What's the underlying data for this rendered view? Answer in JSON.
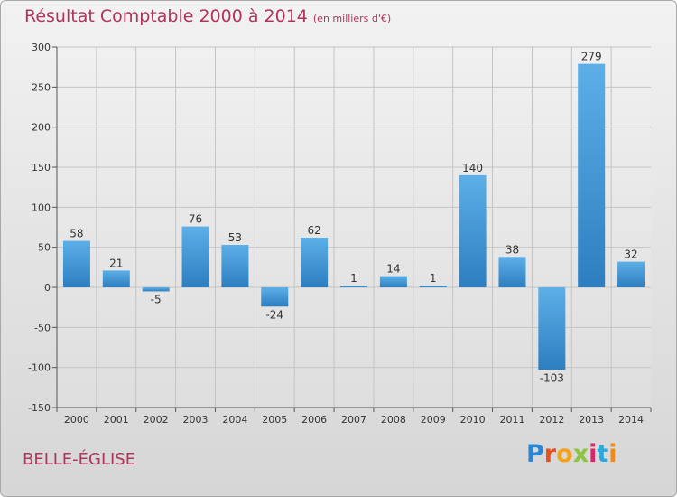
{
  "header": {
    "title": "Résultat Comptable 2000 à 2014",
    "unit": "(en milliers d'€)"
  },
  "footer": {
    "location": "BELLE-ÉGLISE",
    "brand_letters": [
      "P",
      "r",
      "o",
      "x",
      "i",
      "t",
      "i"
    ],
    "brand_colors": [
      "#2a86d1",
      "#e8521f",
      "#f2a31b",
      "#8cc43f",
      "#d6286b",
      "#2ea8d8",
      "#f08a1d"
    ]
  },
  "chart_data": {
    "type": "bar",
    "title": "Résultat Comptable 2000 à 2014",
    "subtitle": "(en milliers d'€)",
    "categories": [
      "2000",
      "2001",
      "2002",
      "2003",
      "2004",
      "2005",
      "2006",
      "2007",
      "2008",
      "2009",
      "2010",
      "2011",
      "2012",
      "2013",
      "2014"
    ],
    "values": [
      58,
      21,
      -5,
      76,
      53,
      -24,
      62,
      1,
      14,
      1,
      140,
      38,
      -103,
      279,
      32
    ],
    "ylim": [
      -150,
      300
    ],
    "yticks": [
      -150,
      -100,
      -50,
      0,
      50,
      100,
      150,
      200,
      250,
      300
    ],
    "grid": true,
    "bar_color_top": "#5dafe8",
    "bar_color_bottom": "#2d7ec0"
  }
}
